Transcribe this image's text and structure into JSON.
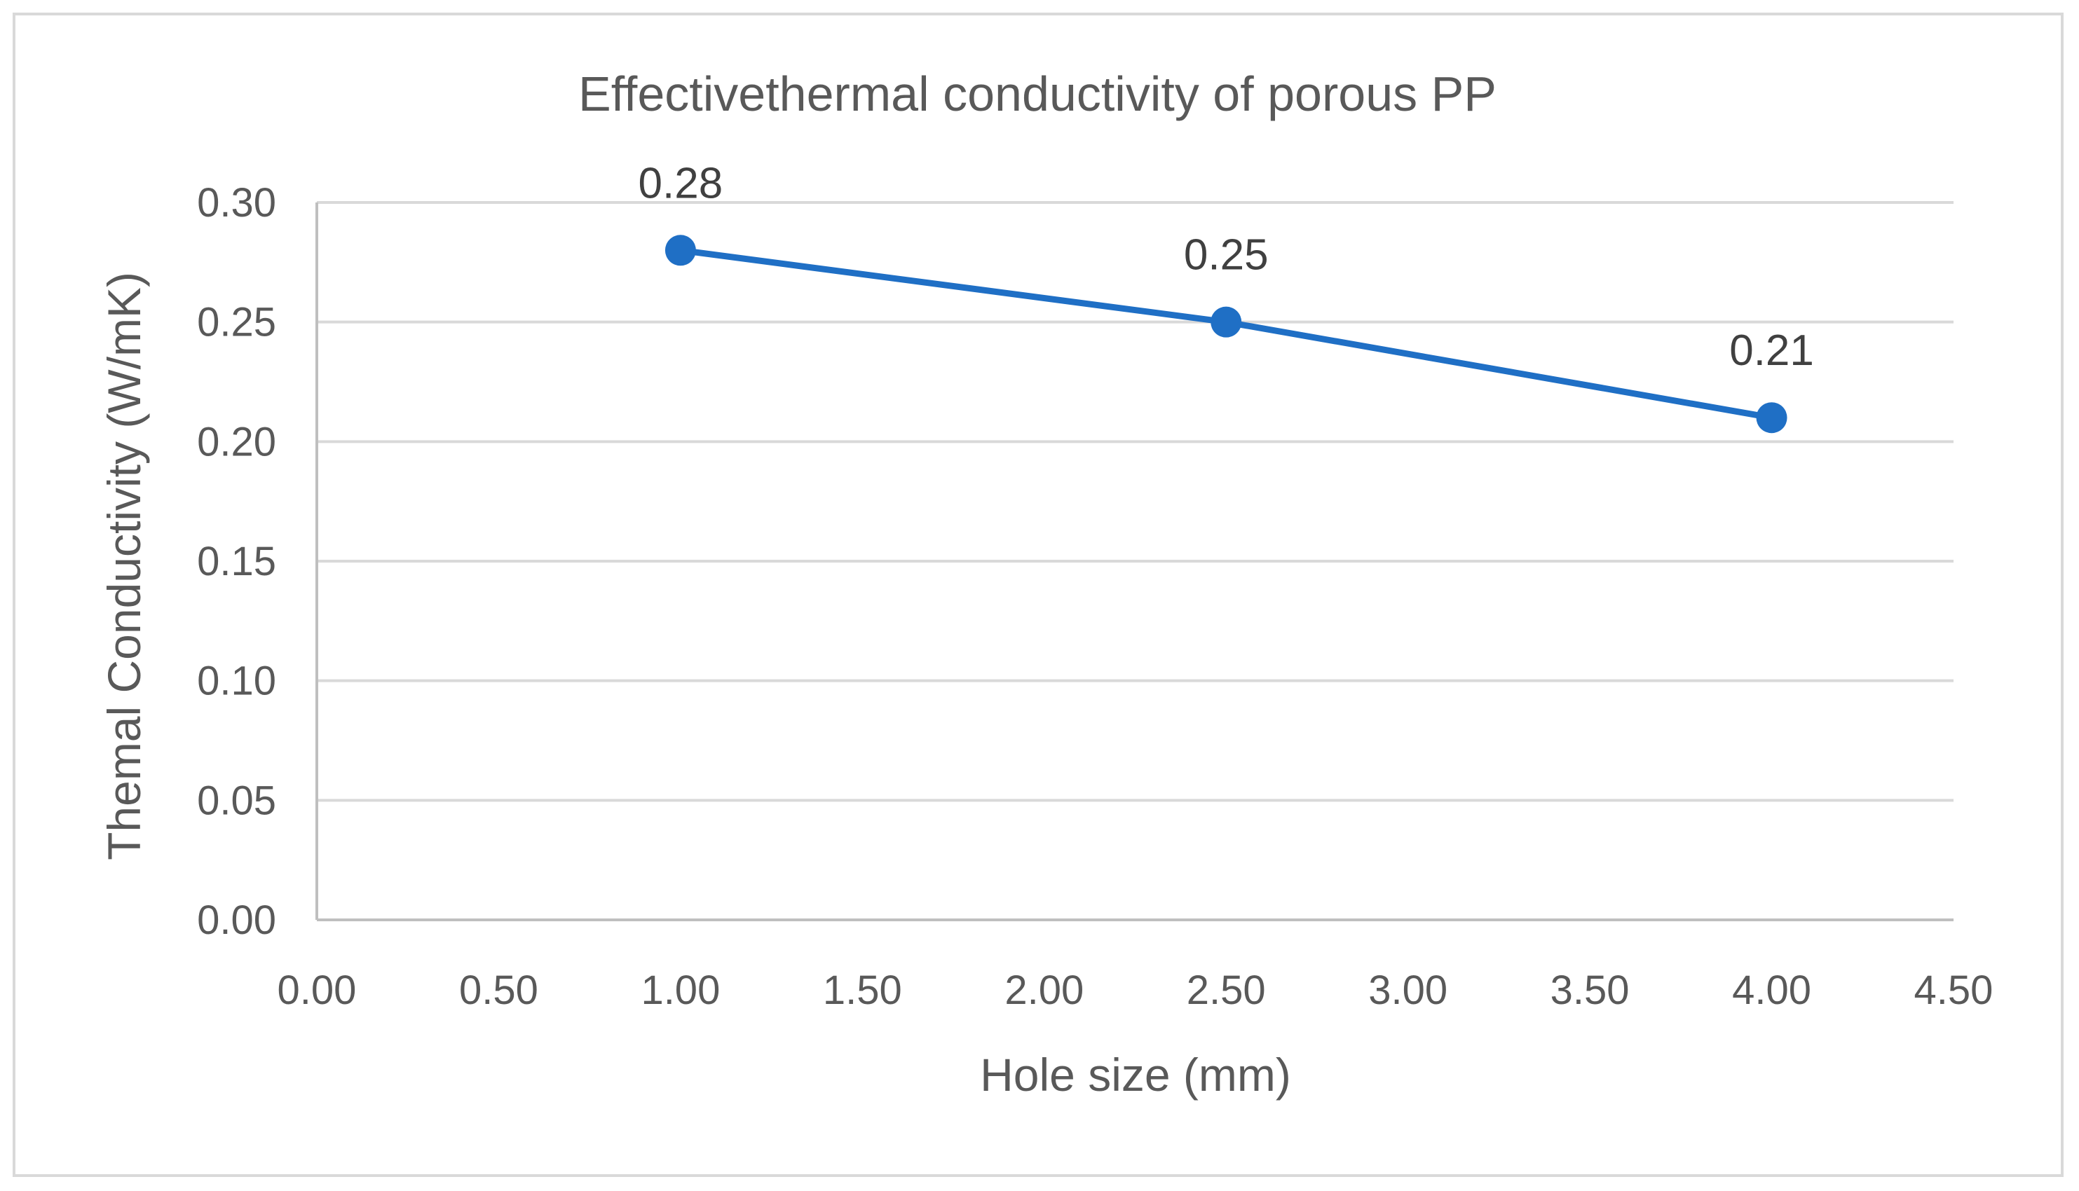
{
  "chart_data": {
    "type": "line",
    "title": "Effectivethermal conductivity of porous PP",
    "xlabel": "Hole size (mm)",
    "ylabel": "Themal Conductivity (W/mK)",
    "xlim": [
      0,
      4.5
    ],
    "ylim": [
      0,
      0.3
    ],
    "x_ticks": [
      "0.00",
      "0.50",
      "1.00",
      "1.50",
      "2.00",
      "2.50",
      "3.00",
      "3.50",
      "4.00",
      "4.50"
    ],
    "y_ticks": [
      "0.00",
      "0.05",
      "0.10",
      "0.15",
      "0.20",
      "0.25",
      "0.30"
    ],
    "grid": "horizontal",
    "legend": "none",
    "series": [
      {
        "color": "#1f6fc5",
        "points": [
          {
            "x": 1.0,
            "y": 0.28,
            "label": "0.28"
          },
          {
            "x": 2.5,
            "y": 0.25,
            "label": "0.25"
          },
          {
            "x": 4.0,
            "y": 0.21,
            "label": "0.21"
          }
        ]
      }
    ],
    "colors": {
      "grid": "#d9d9d9",
      "axis": "#bfbfbf",
      "text": "#595959"
    }
  }
}
